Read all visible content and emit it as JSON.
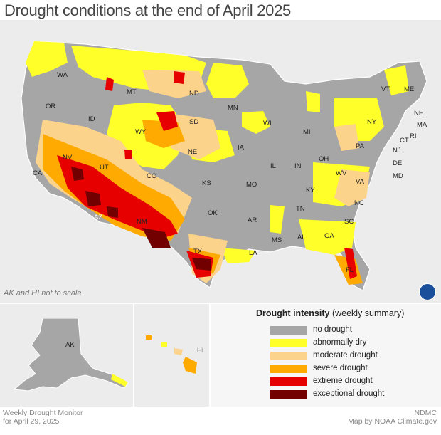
{
  "title": "Drought conditions at the end of April 2025",
  "scale_note": "AK and HI not to scale",
  "legend": {
    "title_bold": "Drought intensity",
    "title_rest": "(weekly summary)",
    "items": [
      {
        "label": "no drought",
        "color": "#a6a6a6"
      },
      {
        "label": "abnormally dry",
        "color": "#ffff2a"
      },
      {
        "label": "moderate drought",
        "color": "#fcd38b"
      },
      {
        "label": "severe drought",
        "color": "#ffaa00"
      },
      {
        "label": "extreme drought",
        "color": "#e60000"
      },
      {
        "label": "exceptional drought",
        "color": "#730000"
      }
    ]
  },
  "footer": {
    "left_line1": "Weekly Drought Monitor",
    "left_line2": "for April 29, 2025",
    "right_line1": "NDMC",
    "right_line2": "Map by NOAA Climate.gov"
  },
  "states": {
    "WA": "WA",
    "OR": "OR",
    "CA": "CA",
    "NV": "NV",
    "ID": "ID",
    "MT": "MT",
    "WY": "WY",
    "UT": "UT",
    "AZ": "AZ",
    "CO": "CO",
    "NM": "NM",
    "ND": "ND",
    "SD": "SD",
    "NE": "NE",
    "KS": "KS",
    "OK": "OK",
    "TX": "TX",
    "MN": "MN",
    "IA": "IA",
    "MO": "MO",
    "AR": "AR",
    "LA": "LA",
    "WI": "WI",
    "IL": "IL",
    "MS": "MS",
    "MI": "MI",
    "IN": "IN",
    "OH": "OH",
    "KY": "KY",
    "TN": "TN",
    "AL": "AL",
    "GA": "GA",
    "FL": "FL",
    "SC": "SC",
    "NC": "NC",
    "VA": "VA",
    "WV": "WV",
    "PA": "PA",
    "NY": "NY",
    "VT": "VT",
    "ME": "ME",
    "NH": "NH",
    "MA": "MA",
    "CT": "CT",
    "RI": "RI",
    "NJ": "NJ",
    "DE": "DE",
    "MD": "MD",
    "AK": "AK",
    "HI": "HI"
  },
  "logo": "noaa-logo"
}
